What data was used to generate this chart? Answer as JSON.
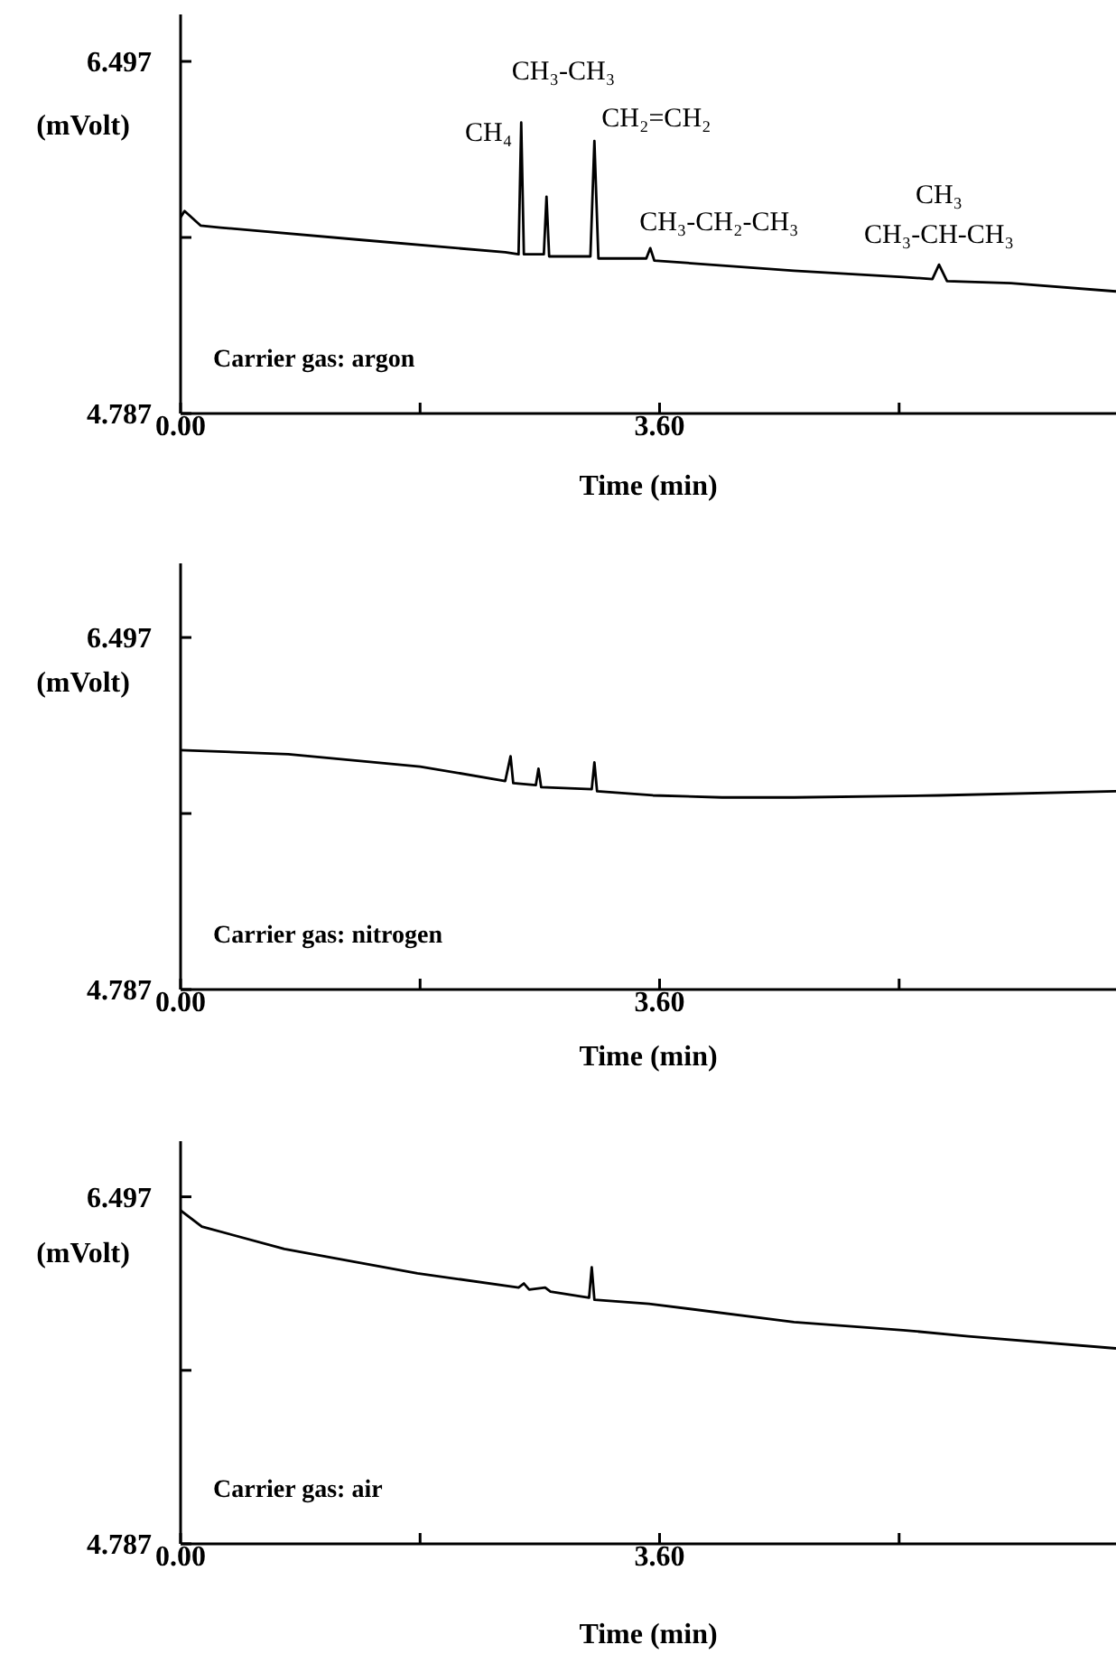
{
  "chart_data": [
    {
      "type": "line",
      "xlabel": "Time (min)",
      "ylabel": "(mVolt)",
      "xlim": [
        0,
        7.03
      ],
      "ylim": [
        4.787,
        6.725
      ],
      "xticks": [
        {
          "value": 0,
          "label": "0.00"
        },
        {
          "value": 1.8,
          "label": null
        },
        {
          "value": 3.6,
          "label": "3.60"
        },
        {
          "value": 5.4,
          "label": null
        }
      ],
      "yticks": [
        {
          "value": 4.787,
          "label": "4.787"
        },
        {
          "value": 5.642,
          "label": null
        },
        {
          "value": 6.497,
          "label": "6.497"
        }
      ],
      "marker": "none",
      "line_style": "solid",
      "grid": false,
      "legend": false,
      "series": [
        {
          "color": "#000000",
          "x": [
            0,
            0.03,
            0.15,
            0.3,
            1.36,
            2.44,
            2.54,
            2.56,
            2.58,
            2.73,
            2.75,
            2.77,
            3.08,
            3.11,
            3.14,
            3.5,
            3.53,
            3.56,
            4.61,
            5.43,
            5.65,
            5.7,
            5.76,
            6.24,
            7.03
          ],
          "values": [
            5.74,
            5.77,
            5.7,
            5.69,
            5.63,
            5.57,
            5.56,
            6.2,
            5.56,
            5.56,
            5.84,
            5.55,
            5.55,
            6.11,
            5.54,
            5.54,
            5.59,
            5.53,
            5.48,
            5.45,
            5.44,
            5.51,
            5.43,
            5.42,
            5.38
          ]
        }
      ],
      "annotations": [
        "CH₃-CH₃",
        {
          "text": "CH₄",
          "x": 2.56,
          "y": 6.2
        },
        {
          "text": "CH₂=CH₂",
          "x": 3.11,
          "y": 6.11
        },
        {
          "text": "CH₃-CH₂-CH₃",
          "x": 3.53,
          "y": 5.59
        },
        {
          "text": "CH₃-CH-CH₃",
          "x": 5.7,
          "y": 5.51
        },
        {
          "text": "CH₃",
          "x": 5.7,
          "y": 5.51
        },
        "Carrier gas: argon"
      ]
    },
    {
      "type": "line",
      "xlabel": "Time (min)",
      "ylabel": "(mVolt)",
      "xlim": [
        0,
        7.03
      ],
      "ylim": [
        4.787,
        6.857
      ],
      "xticks": [
        {
          "value": 0,
          "label": "0.00"
        },
        {
          "value": 1.8,
          "label": null
        },
        {
          "value": 3.6,
          "label": "3.60"
        },
        {
          "value": 5.4,
          "label": null
        }
      ],
      "yticks": [
        {
          "value": 4.787,
          "label": "4.787"
        },
        {
          "value": 5.642,
          "label": null
        },
        {
          "value": 6.497,
          "label": "6.497"
        }
      ],
      "marker": "none",
      "line_style": "solid",
      "grid": false,
      "legend": false,
      "series": [
        {
          "color": "#000000",
          "x": [
            0,
            0.81,
            1.8,
            2.44,
            2.48,
            2.5,
            2.67,
            2.69,
            2.71,
            3.09,
            3.11,
            3.13,
            3.55,
            4.07,
            4.61,
            5.7,
            7.03
          ],
          "values": [
            5.95,
            5.93,
            5.87,
            5.8,
            5.92,
            5.79,
            5.78,
            5.86,
            5.77,
            5.76,
            5.89,
            5.75,
            5.73,
            5.72,
            5.72,
            5.73,
            5.75
          ]
        }
      ],
      "annotations": [
        "Carrier gas: nitrogen"
      ]
    },
    {
      "type": "line",
      "xlabel": "Time (min)",
      "ylabel": "(mVolt)",
      "xlim": [
        0,
        7.03
      ],
      "ylim": [
        4.787,
        6.771
      ],
      "xticks": [
        {
          "value": 0,
          "label": "0.00"
        },
        {
          "value": 1.8,
          "label": null
        },
        {
          "value": 3.6,
          "label": "3.60"
        },
        {
          "value": 5.4,
          "label": null
        }
      ],
      "yticks": [
        {
          "value": 4.787,
          "label": "4.787"
        },
        {
          "value": 5.642,
          "label": null
        },
        {
          "value": 6.497,
          "label": "6.497"
        }
      ],
      "marker": "none",
      "line_style": "solid",
      "grid": false,
      "legend": false,
      "series": [
        {
          "color": "#000000",
          "x": [
            0,
            0.16,
            0.78,
            1.78,
            2.54,
            2.58,
            2.62,
            2.74,
            2.78,
            3.07,
            3.09,
            3.11,
            3.52,
            4.61,
            5.43,
            5.92,
            7.03
          ],
          "values": [
            6.43,
            6.35,
            6.24,
            6.12,
            6.05,
            6.07,
            6.04,
            6.05,
            6.03,
            6,
            6.15,
            5.99,
            5.97,
            5.88,
            5.84,
            5.81,
            5.75
          ]
        }
      ],
      "annotations": [
        "Carrier gas: air"
      ]
    }
  ]
}
